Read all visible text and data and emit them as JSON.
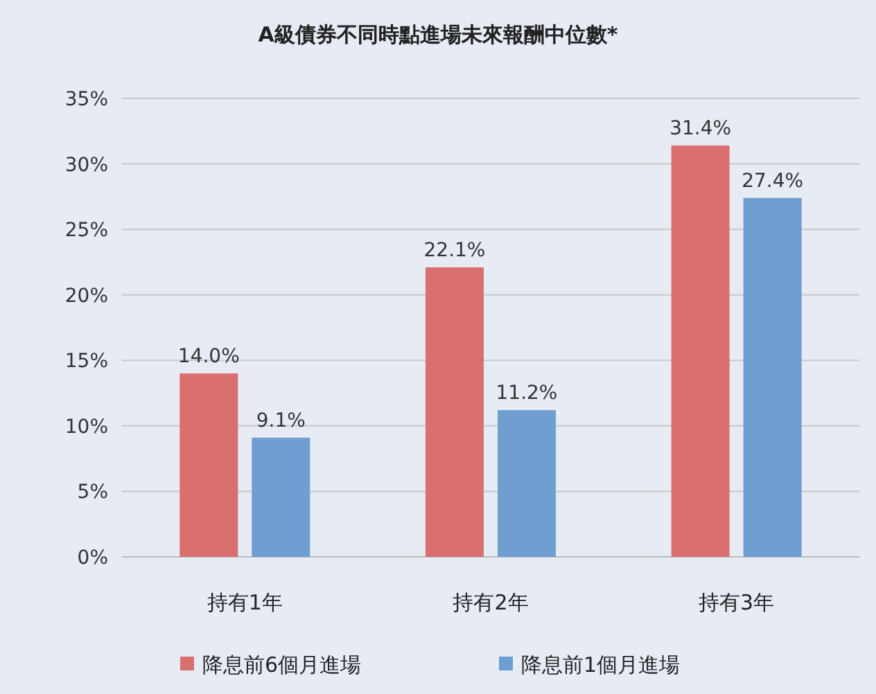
{
  "chart_data": {
    "type": "bar",
    "title": "A級債券不同時點進場未來報酬中位數*",
    "categories": [
      "持有1年",
      "持有2年",
      "持有3年"
    ],
    "series": [
      {
        "name": "降息前6個月進場",
        "color": "#d9706f",
        "values": [
          14.0,
          22.1,
          31.4
        ],
        "value_labels": [
          "14.0%",
          "22.1%",
          "31.4%"
        ]
      },
      {
        "name": "降息前1個月進場",
        "color": "#6f9fd0",
        "values": [
          9.1,
          11.2,
          27.4
        ],
        "value_labels": [
          "9.1%",
          "11.2%",
          "27.4%"
        ]
      }
    ],
    "ylim": [
      0,
      35
    ],
    "yticks": [
      {
        "value": 0,
        "label": "0%"
      },
      {
        "value": 5,
        "label": "5%"
      },
      {
        "value": 10,
        "label": "10%"
      },
      {
        "value": 15,
        "label": "15%"
      },
      {
        "value": 20,
        "label": "20%"
      },
      {
        "value": 25,
        "label": "25%"
      },
      {
        "value": 30,
        "label": "30%"
      },
      {
        "value": 35,
        "label": "35%"
      }
    ],
    "grid": "y",
    "legend": "bottom"
  }
}
